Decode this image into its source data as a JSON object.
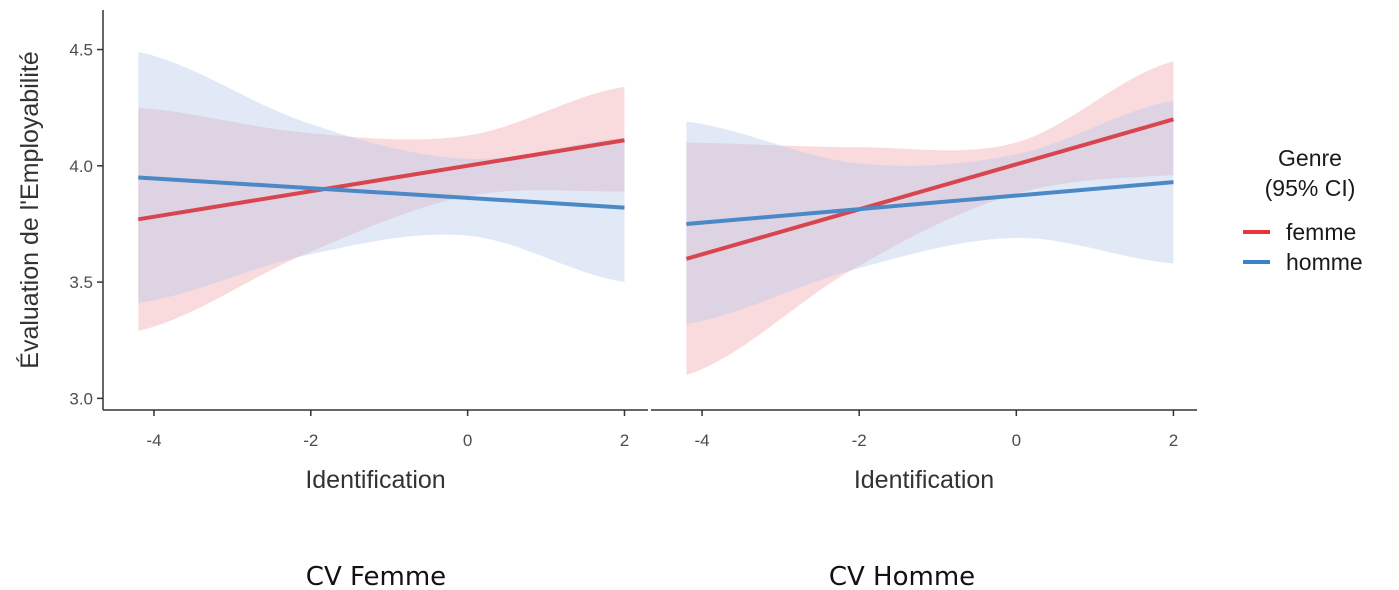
{
  "chart_data": {
    "type": "line",
    "ylabel": "Évaluation de l'Employabilité",
    "xlabel": "Identification",
    "ylim": [
      2.95,
      4.67
    ],
    "yticks": [
      3.0,
      3.5,
      4.0,
      4.5
    ],
    "ytick_labels": [
      "3.0",
      "3.5",
      "4.0",
      "4.5"
    ],
    "xlim": [
      -4.65,
      2.3
    ],
    "xticks": [
      -4,
      -2,
      0,
      2
    ],
    "xtick_labels": [
      "-4",
      "-2",
      "0",
      "2"
    ],
    "grid": false,
    "legend": {
      "title_lines": [
        "Genre",
        "(95% CI)"
      ],
      "placement": "right",
      "entries": [
        {
          "label": "femme",
          "color": "#e8343a"
        },
        {
          "label": "homme",
          "color": "#3b82cc"
        }
      ]
    },
    "panels": [
      {
        "caption": "CV Femme",
        "series": [
          {
            "name": "femme",
            "line_color": "#d9454f",
            "band_color": "#f4a9ad",
            "x": [
              -4.2,
              2.0
            ],
            "y": [
              3.77,
              4.11
            ],
            "ci_x": [
              -4.2,
              -2,
              0,
              2.0
            ],
            "ci_lower": [
              3.29,
              3.63,
              3.87,
              3.89
            ],
            "ci_upper": [
              4.25,
              4.14,
              4.13,
              4.34
            ]
          },
          {
            "name": "homme",
            "line_color": "#4b88c6",
            "band_color": "#b8c9ea",
            "x": [
              -4.2,
              2.0
            ],
            "y": [
              3.95,
              3.82
            ],
            "ci_x": [
              -4.2,
              -2,
              0,
              2.0
            ],
            "ci_lower": [
              3.41,
              3.62,
              3.7,
              3.5
            ],
            "ci_upper": [
              4.49,
              4.18,
              4.03,
              4.12
            ]
          }
        ]
      },
      {
        "caption": "CV Homme",
        "series": [
          {
            "name": "femme",
            "line_color": "#d9454f",
            "band_color": "#f4a9ad",
            "x": [
              -4.2,
              2.0
            ],
            "y": [
              3.6,
              4.2
            ],
            "ci_x": [
              -4.2,
              -2,
              0,
              2.0
            ],
            "ci_lower": [
              3.1,
              3.57,
              3.88,
              3.96
            ],
            "ci_upper": [
              4.1,
              4.08,
              4.1,
              4.45
            ]
          },
          {
            "name": "homme",
            "line_color": "#4b88c6",
            "band_color": "#b8c9ea",
            "x": [
              -4.2,
              2.0
            ],
            "y": [
              3.75,
              3.93
            ],
            "ci_x": [
              -4.2,
              -2,
              0,
              2.0
            ],
            "ci_lower": [
              3.32,
              3.56,
              3.69,
              3.58
            ],
            "ci_upper": [
              4.19,
              4.01,
              4.05,
              4.28
            ]
          }
        ]
      }
    ]
  }
}
